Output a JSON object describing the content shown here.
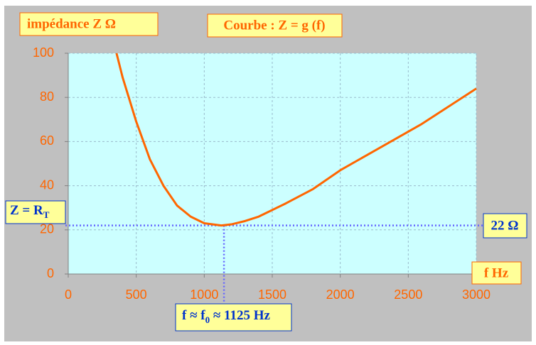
{
  "chart_data": {
    "type": "line",
    "title": "Courbe : Z = g (f)",
    "y_label": "impédance Z  Ω",
    "x_label": "f  Hz",
    "x": [
      355,
      400,
      500,
      600,
      700,
      800,
      900,
      1000,
      1100,
      1125,
      1200,
      1300,
      1400,
      1500,
      1600,
      1800,
      2000,
      2200,
      2400,
      2600,
      2800,
      3000
    ],
    "series": [
      {
        "name": "Z",
        "color": "#ff6600",
        "values": [
          100,
          89,
          69,
          52,
          40,
          31,
          26,
          23,
          22.2,
          22,
          22.5,
          24,
          26,
          29,
          32,
          38.5,
          47,
          54,
          61,
          68,
          76,
          84
        ]
      }
    ],
    "xlim": [
      0,
      3000
    ],
    "xticks": [
      0,
      500,
      1000,
      1500,
      2000,
      2500,
      3000
    ],
    "ylim": [
      0,
      100
    ],
    "yticks": [
      0,
      20,
      40,
      60,
      80,
      100
    ],
    "grid": true,
    "reference": {
      "x": 1145,
      "y": 22
    },
    "rt_label": {
      "main": "Z = R",
      "sub": "T"
    },
    "value_label": "22 Ω",
    "f0_label": {
      "a": "f ≈ f",
      "sub": "0",
      "b": " ≈ 1125 Hz"
    }
  }
}
